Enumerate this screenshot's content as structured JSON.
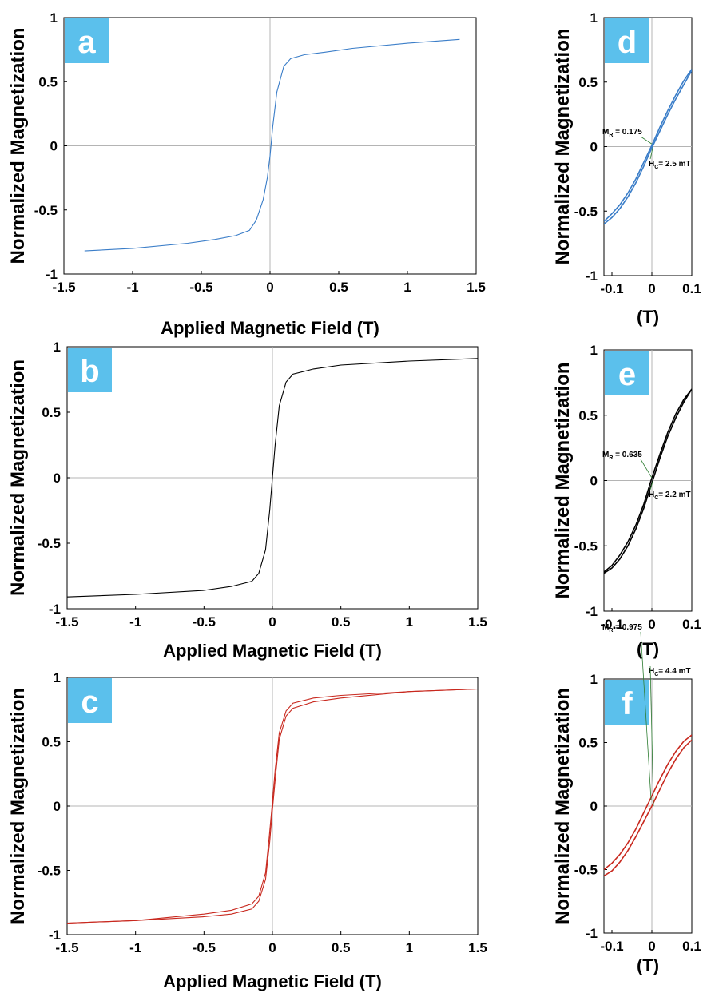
{
  "colors": {
    "a": "#3a7dc8",
    "b": "#000000",
    "c": "#c8281e",
    "label_box": "#5bc0ec",
    "zero_line": "#b4b4b4"
  },
  "chart_data": [
    {
      "panel": "a",
      "type": "line",
      "xlabel": "Applied Magnetic Field (T)",
      "ylabel": "Normalized Magnetization",
      "xlim": [
        -1.5,
        1.5
      ],
      "ylim": [
        -1,
        1
      ],
      "xticks": [
        "-1.5",
        "-1",
        "-0.5",
        "0",
        "0.5",
        "1",
        "1.5"
      ],
      "yticks": [
        "1",
        "0.5",
        "0",
        "-0.5",
        "-1"
      ],
      "series": [
        {
          "color": "#3a7dc8",
          "x": [
            -1.35,
            -1.0,
            -0.6,
            -0.4,
            -0.25,
            -0.15,
            -0.1,
            -0.05,
            -0.02,
            0.0,
            0.02,
            0.05,
            0.1,
            0.15,
            0.25,
            0.4,
            0.6,
            1.0,
            1.38
          ],
          "y": [
            -0.82,
            -0.8,
            -0.76,
            -0.73,
            -0.7,
            -0.66,
            -0.58,
            -0.42,
            -0.25,
            -0.08,
            0.15,
            0.42,
            0.62,
            0.68,
            0.71,
            0.73,
            0.76,
            0.8,
            0.83
          ]
        }
      ]
    },
    {
      "panel": "b",
      "type": "line",
      "xlabel": "Applied Magnetic Field (T)",
      "ylabel": "Normalized Magnetization",
      "xlim": [
        -1.5,
        1.5
      ],
      "ylim": [
        -1,
        1
      ],
      "xticks": [
        "-1.5",
        "-1",
        "-0.5",
        "0",
        "0.5",
        "1",
        "1.5"
      ],
      "yticks": [
        "1",
        "0.5",
        "0",
        "-0.5",
        "-1"
      ],
      "series": [
        {
          "color": "#000000",
          "x": [
            -1.5,
            -1.0,
            -0.5,
            -0.3,
            -0.15,
            -0.1,
            -0.05,
            -0.02,
            0.0,
            0.02,
            0.05,
            0.1,
            0.15,
            0.3,
            0.5,
            1.0,
            1.5
          ],
          "y": [
            -0.91,
            -0.89,
            -0.86,
            -0.83,
            -0.79,
            -0.73,
            -0.55,
            -0.25,
            0.0,
            0.25,
            0.55,
            0.73,
            0.79,
            0.83,
            0.86,
            0.89,
            0.91
          ]
        }
      ]
    },
    {
      "panel": "c",
      "type": "line",
      "xlabel": "Applied Magnetic Field (T)",
      "ylabel": "Normalized Magnetization",
      "xlim": [
        -1.5,
        1.5
      ],
      "ylim": [
        -1,
        1
      ],
      "xticks": [
        "-1.5",
        "-1",
        "-0.5",
        "0",
        "0.5",
        "1",
        "1.5"
      ],
      "yticks": [
        "1",
        "0.5",
        "0",
        "-0.5",
        "-1"
      ],
      "series": [
        {
          "color": "#c8281e",
          "x": [
            -1.5,
            -1.0,
            -0.5,
            -0.3,
            -0.15,
            -0.1,
            -0.05,
            -0.025,
            0.0,
            0.02,
            0.05,
            0.1,
            0.15,
            0.3,
            0.5,
            1.0,
            1.5
          ],
          "y": [
            -0.91,
            -0.89,
            -0.84,
            -0.81,
            -0.76,
            -0.7,
            -0.52,
            -0.26,
            0.03,
            0.28,
            0.57,
            0.74,
            0.8,
            0.84,
            0.86,
            0.89,
            0.91
          ]
        },
        {
          "color": "#c8281e",
          "x": [
            -1.5,
            -1.0,
            -0.5,
            -0.3,
            -0.15,
            -0.1,
            -0.05,
            -0.02,
            0.0,
            0.025,
            0.05,
            0.1,
            0.15,
            0.3,
            0.5,
            1.0,
            1.5
          ],
          "y": [
            -0.91,
            -0.89,
            -0.86,
            -0.84,
            -0.8,
            -0.74,
            -0.57,
            -0.28,
            -0.03,
            0.26,
            0.52,
            0.7,
            0.76,
            0.81,
            0.84,
            0.89,
            0.91
          ]
        }
      ]
    },
    {
      "panel": "d",
      "type": "line",
      "xlabel": "(T)",
      "ylabel": "Normalized Magnetization",
      "xlim": [
        -0.12,
        0.1
      ],
      "ylim": [
        -1,
        1
      ],
      "xticks": [
        "-0.1",
        "0",
        "0.1"
      ],
      "yticks": [
        "1",
        "0.5",
        "0",
        "-0.5",
        "-1"
      ],
      "annotations": {
        "mr_label": "M",
        "mr_sub": "R",
        "mr_value": " = 0.175",
        "hc_label": "H",
        "hc_sub": "C",
        "hc_value": "= 2.5 mT"
      },
      "series": [
        {
          "color": "#3a7dc8",
          "x": [
            -0.12,
            -0.1,
            -0.08,
            -0.06,
            -0.04,
            -0.02,
            0.0,
            0.02,
            0.04,
            0.06,
            0.08,
            0.1
          ],
          "y": [
            -0.58,
            -0.52,
            -0.45,
            -0.36,
            -0.25,
            -0.12,
            0.01,
            0.15,
            0.28,
            0.4,
            0.51,
            0.6
          ]
        },
        {
          "color": "#3a7dc8",
          "x": [
            -0.12,
            -0.1,
            -0.08,
            -0.06,
            -0.04,
            -0.02,
            0.0,
            0.02,
            0.04,
            0.06,
            0.08,
            0.1
          ],
          "y": [
            -0.6,
            -0.55,
            -0.48,
            -0.39,
            -0.28,
            -0.15,
            -0.01,
            0.12,
            0.25,
            0.37,
            0.48,
            0.59
          ]
        }
      ]
    },
    {
      "panel": "e",
      "type": "line",
      "xlabel": "(T)",
      "ylabel": "Normalized Magnetization",
      "xlim": [
        -0.12,
        0.1
      ],
      "ylim": [
        -1,
        1
      ],
      "xticks": [
        "-0.1",
        "0",
        "0.1"
      ],
      "yticks": [
        "1",
        "0.5",
        "0",
        "-0.5",
        "-1"
      ],
      "annotations": {
        "mr_label": "M",
        "mr_sub": "R",
        "mr_value": " = 0.635",
        "hc_label": "H",
        "hc_sub": "C",
        "hc_value": "= 2.2 mT"
      },
      "series": [
        {
          "color": "#000000",
          "x": [
            -0.12,
            -0.1,
            -0.08,
            -0.06,
            -0.04,
            -0.02,
            0.0,
            0.02,
            0.04,
            0.06,
            0.08,
            0.1
          ],
          "y": [
            -0.7,
            -0.65,
            -0.57,
            -0.47,
            -0.34,
            -0.18,
            0.02,
            0.2,
            0.37,
            0.51,
            0.62,
            0.7
          ]
        },
        {
          "color": "#000000",
          "x": [
            -0.12,
            -0.1,
            -0.08,
            -0.06,
            -0.04,
            -0.02,
            0.0,
            0.02,
            0.04,
            0.06,
            0.08,
            0.1
          ],
          "y": [
            -0.71,
            -0.67,
            -0.6,
            -0.5,
            -0.37,
            -0.21,
            -0.02,
            0.17,
            0.34,
            0.48,
            0.6,
            0.7
          ]
        }
      ]
    },
    {
      "panel": "f",
      "type": "line",
      "xlabel": "(T)",
      "ylabel": "Normalized Magnetization",
      "xlim": [
        -0.12,
        0.1
      ],
      "ylim": [
        -1,
        1
      ],
      "xticks": [
        "-0.1",
        "0",
        "0.1"
      ],
      "yticks": [
        "1",
        "0.5",
        "0",
        "-0.5",
        "-1"
      ],
      "annotations": {
        "mr_label": "M",
        "mr_sub": "R",
        "mr_value": " = 0.975",
        "hc_label": "H",
        "hc_sub": "C",
        "hc_value": "= 4.4 mT"
      },
      "series": [
        {
          "color": "#c8281e",
          "x": [
            -0.12,
            -0.1,
            -0.08,
            -0.06,
            -0.04,
            -0.02,
            0.0,
            0.02,
            0.04,
            0.06,
            0.08,
            0.1
          ],
          "y": [
            -0.5,
            -0.45,
            -0.38,
            -0.29,
            -0.18,
            -0.05,
            0.08,
            0.21,
            0.33,
            0.43,
            0.51,
            0.56
          ]
        },
        {
          "color": "#c8281e",
          "x": [
            -0.12,
            -0.1,
            -0.08,
            -0.06,
            -0.04,
            -0.02,
            0.0,
            0.02,
            0.04,
            0.06,
            0.08,
            0.1
          ],
          "y": [
            -0.55,
            -0.51,
            -0.44,
            -0.35,
            -0.24,
            -0.12,
            0.0,
            0.13,
            0.26,
            0.37,
            0.46,
            0.52
          ]
        }
      ]
    }
  ]
}
